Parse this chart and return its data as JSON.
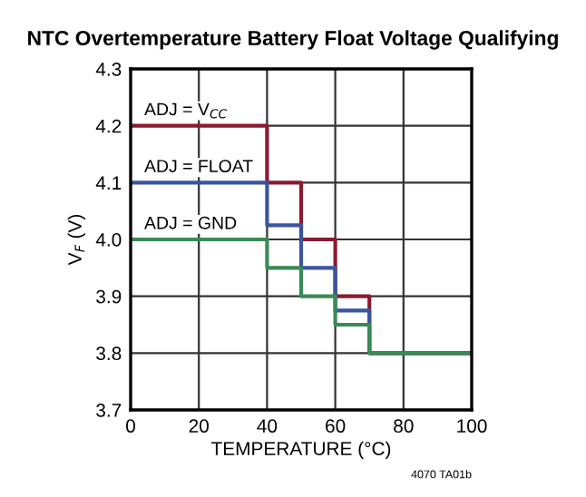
{
  "chart_data": {
    "type": "step",
    "title": "NTC Overtemperature Battery Float Voltage Qualifying",
    "xlabel": "TEMPERATURE (°C)",
    "ylabel": "V$_{F}$ (V)",
    "x": [
      0,
      40,
      50,
      60,
      70,
      100
    ],
    "series": [
      {
        "name": "ADJ = V$_{CC}$",
        "color": "#8b1a30",
        "values": [
          4.2,
          4.1,
          4.0,
          3.9,
          3.8,
          3.8
        ]
      },
      {
        "name": "ADJ = FLOAT",
        "color": "#3a55a0",
        "values": [
          4.1,
          4.025,
          3.95,
          3.875,
          3.8,
          3.8
        ]
      },
      {
        "name": "ADJ = GND",
        "color": "#3a8a55",
        "values": [
          4.0,
          3.95,
          3.9,
          3.85,
          3.8,
          3.8
        ]
      }
    ],
    "xlim": [
      0,
      100
    ],
    "xticks": [
      0,
      20,
      40,
      60,
      80,
      100
    ],
    "ylim": [
      3.7,
      4.3
    ],
    "yticks": [
      {
        "value": 3.7,
        "label": "3.7"
      },
      {
        "value": 3.8,
        "label": "3.8"
      },
      {
        "value": 3.9,
        "label": "3.9"
      },
      {
        "value": 4.0,
        "label": "4.0"
      },
      {
        "value": 4.1,
        "label": "4.1"
      },
      {
        "value": 4.2,
        "label": "4.2"
      },
      {
        "value": 4.3,
        "label": "4.3"
      }
    ],
    "grid": true,
    "legend": false,
    "annotations": [
      "4070 TA01b"
    ]
  }
}
